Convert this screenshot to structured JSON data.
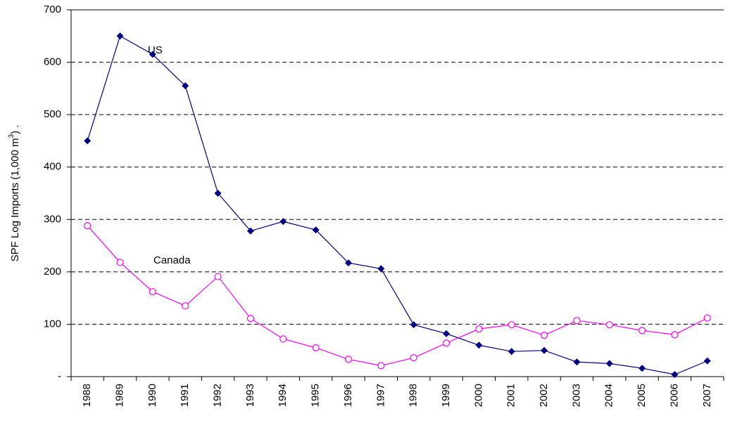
{
  "chart_data": {
    "type": "line",
    "ylabel": {
      "before": "SPF Log Imports (1,000 m",
      "sup": "3",
      "after": ")  ."
    },
    "categories": [
      "1988",
      "1989",
      "1990",
      "1991",
      "1992",
      "1993",
      "1994",
      "1995",
      "1996",
      "1997",
      "1998",
      "1999",
      "2000",
      "2001",
      "2002",
      "2003",
      "2004",
      "2005",
      "2006",
      "2007"
    ],
    "series": [
      {
        "name": "US",
        "color": "#000080",
        "marker": "diamond",
        "values": [
          450,
          650,
          615,
          555,
          350,
          278,
          296,
          280,
          217,
          206,
          99,
          82,
          60,
          48,
          50,
          28,
          25,
          16,
          4,
          30
        ]
      },
      {
        "name": "Canada",
        "color": "#ff00ff",
        "marker": "circle",
        "values": [
          288,
          218,
          162,
          135,
          191,
          111,
          72,
          55,
          33,
          21,
          36,
          64,
          91,
          99,
          79,
          107,
          99,
          88,
          80,
          112
        ]
      }
    ],
    "ylim": [
      0,
      700
    ],
    "yticks": [
      {
        "value": 0,
        "label": "-"
      },
      100,
      200,
      300,
      400,
      500,
      600,
      700
    ],
    "grid": true
  }
}
